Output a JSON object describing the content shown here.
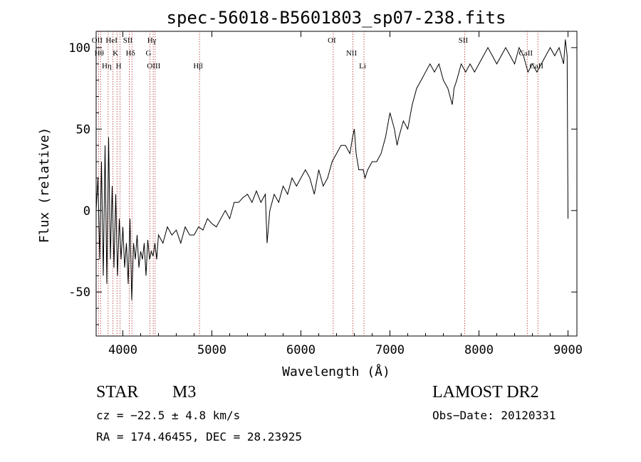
{
  "chart_data": {
    "type": "line",
    "title": "spec-56018-B5601803_sp07-238.fits",
    "xlabel": "Wavelength (Å)",
    "ylabel": "Flux (relative)",
    "xlim": [
      3700,
      9100
    ],
    "ylim": [
      -77,
      110
    ],
    "xticks": [
      4000,
      5000,
      6000,
      7000,
      8000,
      9000
    ],
    "yticks": [
      -50,
      0,
      50,
      100
    ],
    "grid": false,
    "series": [
      {
        "x": [
          3700,
          3720,
          3740,
          3760,
          3780,
          3800,
          3820,
          3840,
          3860,
          3880,
          3900,
          3920,
          3940,
          3960,
          3980,
          4000,
          4020,
          4040,
          4060,
          4080,
          4100,
          4120,
          4140,
          4160,
          4180,
          4200,
          4220,
          4240,
          4260,
          4280,
          4300,
          4320,
          4340,
          4360,
          4380,
          4400,
          4450,
          4500,
          4550,
          4600,
          4650,
          4700,
          4750,
          4800,
          4850,
          4900,
          4950,
          5000,
          5050,
          5100,
          5150,
          5200,
          5250,
          5300,
          5350,
          5400,
          5450,
          5500,
          5550,
          5600,
          5620,
          5650,
          5700,
          5750,
          5800,
          5850,
          5900,
          5950,
          6000,
          6050,
          6100,
          6150,
          6200,
          6250,
          6300,
          6350,
          6400,
          6450,
          6500,
          6550,
          6580,
          6600,
          6620,
          6650,
          6700,
          6720,
          6750,
          6800,
          6850,
          6900,
          6950,
          7000,
          7050,
          7080,
          7100,
          7150,
          7200,
          7250,
          7300,
          7350,
          7400,
          7450,
          7500,
          7550,
          7600,
          7650,
          7700,
          7720,
          7750,
          7800,
          7850,
          7900,
          7950,
          8000,
          8050,
          8100,
          8150,
          8200,
          8250,
          8300,
          8350,
          8400,
          8450,
          8500,
          8550,
          8600,
          8650,
          8700,
          8750,
          8800,
          8850,
          8900,
          8950,
          8970,
          8990,
          9000
        ],
        "y": [
          0,
          20,
          -30,
          30,
          -40,
          40,
          -45,
          45,
          -30,
          15,
          -35,
          10,
          -40,
          -5,
          -30,
          -10,
          -35,
          -20,
          -45,
          -5,
          -55,
          -20,
          -30,
          -15,
          -35,
          -25,
          -30,
          -20,
          -40,
          -18,
          -30,
          -25,
          -28,
          -20,
          -30,
          -15,
          -20,
          -10,
          -15,
          -12,
          -20,
          -10,
          -15,
          -15,
          -10,
          -12,
          -5,
          -8,
          -10,
          -5,
          0,
          -5,
          5,
          5,
          8,
          10,
          5,
          12,
          5,
          10,
          -20,
          0,
          10,
          5,
          15,
          10,
          20,
          15,
          20,
          25,
          20,
          10,
          25,
          15,
          20,
          30,
          35,
          40,
          40,
          35,
          45,
          50,
          35,
          25,
          25,
          20,
          25,
          30,
          30,
          35,
          45,
          60,
          50,
          40,
          45,
          55,
          50,
          65,
          75,
          80,
          85,
          90,
          85,
          90,
          80,
          75,
          65,
          75,
          80,
          90,
          85,
          90,
          85,
          90,
          95,
          100,
          95,
          90,
          95,
          100,
          95,
          90,
          100,
          95,
          85,
          90,
          85,
          90,
          95,
          100,
          95,
          100,
          90,
          105,
          95,
          -5
        ]
      }
    ],
    "annotations": [
      {
        "label": "OII",
        "x": 3727
      },
      {
        "label": "Hθ",
        "x": 3750
      },
      {
        "label": "Hη",
        "x": 3835
      },
      {
        "label": "HeI",
        "x": 3889
      },
      {
        "label": "K",
        "x": 3934
      },
      {
        "label": "H",
        "x": 3969
      },
      {
        "label": "SII",
        "x": 4072
      },
      {
        "label": "Hδ",
        "x": 4102
      },
      {
        "label": "OIII",
        "x": 4363
      },
      {
        "label": "Hγ",
        "x": 4341
      },
      {
        "label": "G",
        "x": 4304
      },
      {
        "label": "Hβ",
        "x": 4861
      },
      {
        "label": "OI",
        "x": 6363
      },
      {
        "label": "NII",
        "x": 6584
      },
      {
        "label": "Li",
        "x": 6708
      },
      {
        "label": "SII",
        "x": 7840
      },
      {
        "label": "CaII",
        "x": 8542
      },
      {
        "label": "CaII",
        "x": 8662
      }
    ]
  },
  "info": {
    "class": "STAR",
    "subclass": "M3",
    "survey": "LAMOST DR2",
    "cz": "cz = −22.5 ± 4.8 km/s",
    "obs_date": "Obs−Date: 20120331",
    "coords": "RA = 174.46455, DEC =  28.23925"
  }
}
